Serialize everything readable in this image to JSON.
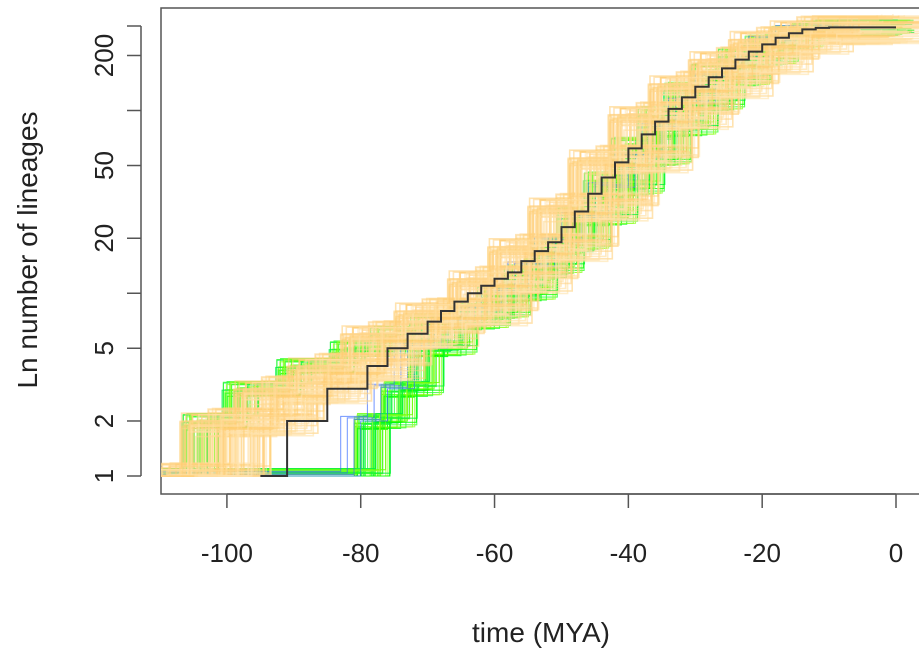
{
  "chart_data": {
    "type": "line",
    "title": "",
    "xlabel": "time (MYA)",
    "ylabel": "Ln number of lineages",
    "xlim": [
      -110,
      0
    ],
    "ylim": [
      1,
      290
    ],
    "y_scale": "log",
    "x_ticks": [
      -100,
      -80,
      -60,
      -40,
      -20,
      0
    ],
    "x_tick_labels": [
      "-100",
      "-80",
      "-60",
      "-40",
      "-20",
      "0"
    ],
    "y_ticks": [
      1,
      2,
      5,
      20,
      50,
      200
    ],
    "y_tick_labels": [
      "1",
      "2",
      "5",
      "20",
      "50",
      "200"
    ],
    "y_minor_ticks": [
      10,
      100
    ],
    "grid": false,
    "legend": "none",
    "series": [
      {
        "role": "posterior-sample-envelope-early",
        "color": "#00ff00",
        "x": [
          -110.5,
          -104,
          -98,
          -90,
          -82,
          -76,
          -70,
          -64,
          -60,
          -56,
          -52,
          -48,
          -44,
          -40,
          -36,
          -32,
          -28,
          -24,
          -20,
          -16,
          -12,
          -10,
          0
        ],
        "y": [
          1,
          2,
          3,
          4,
          5,
          6,
          7,
          8,
          10,
          13,
          18,
          27,
          42,
          65,
          95,
          130,
          165,
          200,
          235,
          265,
          280,
          285,
          285
        ]
      },
      {
        "role": "posterior-sample-envelope-late",
        "color": "#00ff00",
        "x": [
          -110.5,
          -81,
          -78,
          -74,
          -70,
          -65,
          -60,
          -57,
          -53,
          -49,
          -45,
          -41,
          -37,
          -33,
          -29,
          -25,
          -21,
          -17,
          -13,
          -9,
          0
        ],
        "y": [
          1,
          1,
          2,
          3,
          5,
          7,
          8,
          10,
          14,
          19,
          26,
          38,
          55,
          80,
          110,
          150,
          195,
          240,
          275,
          285,
          285
        ]
      },
      {
        "role": "posterior-sample-density",
        "color": "#ffd080",
        "x": [
          -108,
          -100,
          -92,
          -84,
          -76,
          -68,
          -60,
          -54,
          -48,
          -42,
          -36,
          -30,
          -24,
          -18,
          -12,
          0
        ],
        "y": [
          1,
          2,
          3,
          4,
          6,
          8,
          12,
          18,
          30,
          55,
          95,
          140,
          190,
          245,
          280,
          285
        ]
      },
      {
        "role": "consensus-tree",
        "color": "#333333",
        "x": [
          -95,
          -91,
          -85,
          -79,
          -76,
          -73,
          -70,
          -68,
          -66,
          -64,
          -62,
          -60,
          -58,
          -56,
          -54,
          -52,
          -50,
          -48,
          -46,
          -44,
          -42,
          -40,
          -38,
          -36,
          -34,
          -32,
          -30,
          -28,
          -26,
          -24,
          -22,
          -20,
          -18,
          -16,
          -14,
          -12,
          -10,
          0
        ],
        "y": [
          1,
          2,
          3,
          4,
          5,
          6,
          7,
          8,
          9,
          10,
          11,
          12,
          13,
          15,
          17,
          19,
          23,
          28,
          35,
          43,
          52,
          62,
          74,
          87,
          102,
          118,
          135,
          152,
          170,
          190,
          210,
          230,
          250,
          265,
          278,
          283,
          285,
          285
        ]
      }
    ]
  }
}
